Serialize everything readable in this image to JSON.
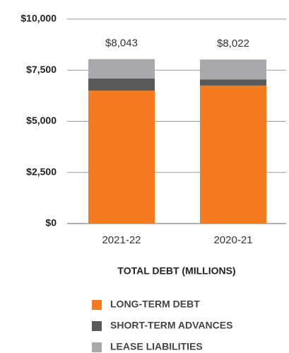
{
  "chart_data": {
    "type": "stacked_bar",
    "title": "TOTAL DEBT (MILLIONS)",
    "categories": [
      "2021-22",
      "2020-21"
    ],
    "series": [
      {
        "name": "LONG-TERM DEBT",
        "color": "#f47b20",
        "values": [
          6500,
          6750
        ]
      },
      {
        "name": "SHORT-TERM ADVANCES",
        "color": "#58595b",
        "values": [
          600,
          300
        ]
      },
      {
        "name": "LEASE LIABILITIES",
        "color": "#a7a9ac",
        "values": [
          943,
          972
        ]
      }
    ],
    "totals": [
      8043,
      8022
    ],
    "total_labels": [
      "$8,043",
      "$8,022"
    ],
    "ylim": [
      0,
      10000
    ],
    "yticks": [
      {
        "value": 0,
        "label": "$0"
      },
      {
        "value": 2500,
        "label": "$2,500"
      },
      {
        "value": 5000,
        "label": "$5,000"
      },
      {
        "value": 7500,
        "label": "$7,500"
      },
      {
        "value": 10000,
        "label": "$10,000"
      }
    ],
    "grid": true
  }
}
